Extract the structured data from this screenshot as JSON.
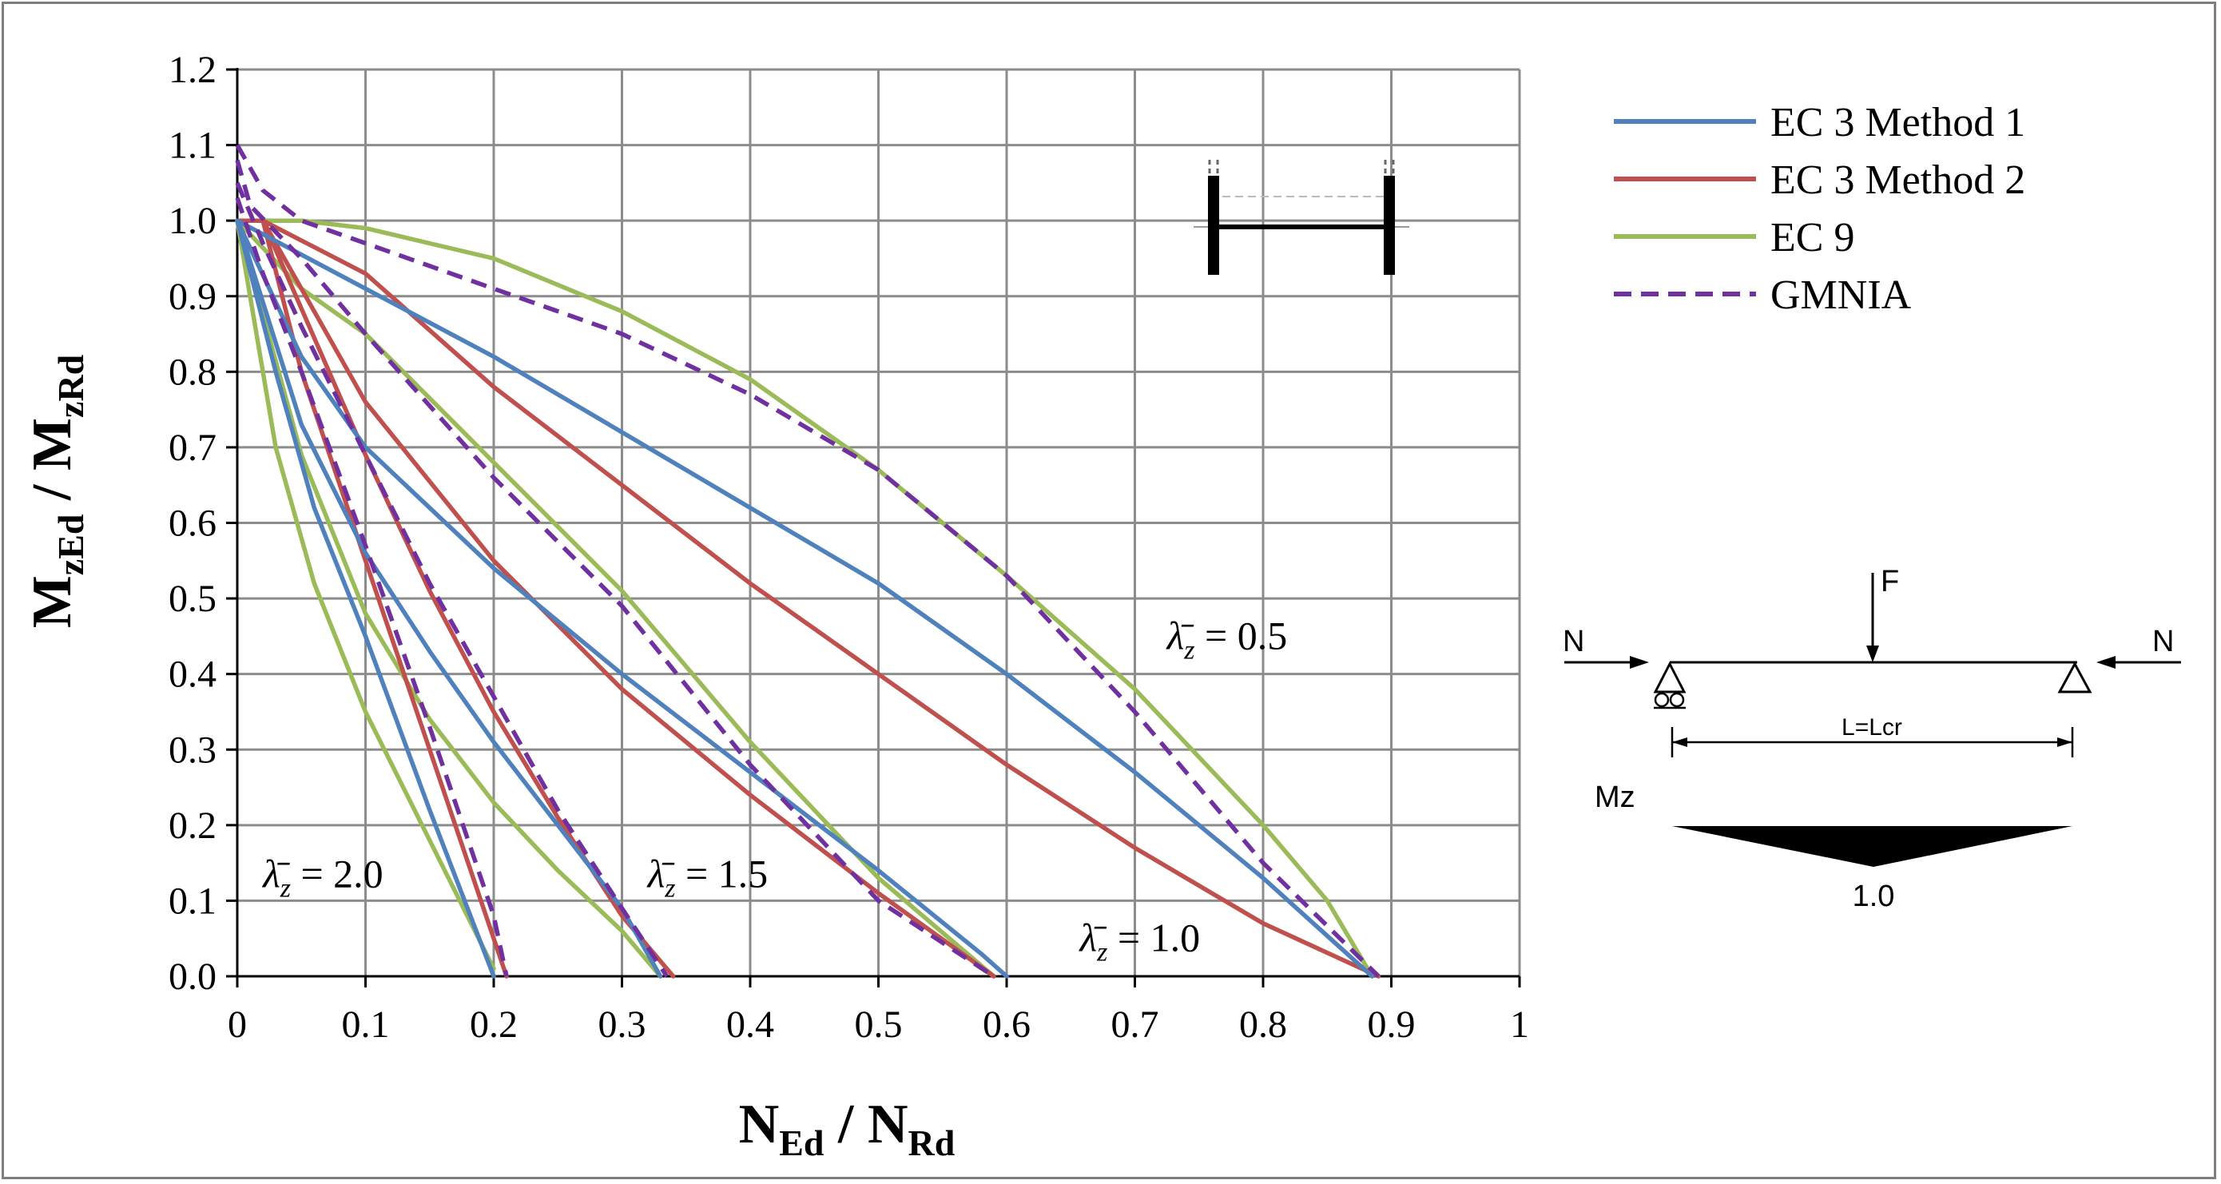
{
  "chart_data": {
    "type": "line",
    "xlabel": {
      "main": "N",
      "sub1": "Ed",
      "sep": " / ",
      "main2": "N",
      "sub2": "Rd"
    },
    "ylabel": {
      "main": "M",
      "sub1": "zEd",
      "sep": " / ",
      "main2": "M",
      "sub2": "zRd"
    },
    "xlim": [
      0,
      1
    ],
    "ylim": [
      0,
      1.2
    ],
    "x_ticks": [
      0,
      0.1,
      0.2,
      0.3,
      0.4,
      0.5,
      0.6,
      0.7,
      0.8,
      0.9,
      1
    ],
    "x_tick_labels": [
      "0",
      "0.1",
      "0.2",
      "0.3",
      "0.4",
      "0.5",
      "0.6",
      "0.7",
      "0.8",
      "0.9",
      "1"
    ],
    "y_ticks": [
      0,
      0.1,
      0.2,
      0.3,
      0.4,
      0.5,
      0.6,
      0.7,
      0.8,
      0.9,
      1.0,
      1.1,
      1.2
    ],
    "y_tick_labels": [
      "0.0",
      "0.1",
      "0.2",
      "0.3",
      "0.4",
      "0.5",
      "0.6",
      "0.7",
      "0.8",
      "0.9",
      "1.0",
      "1.1",
      "1.2"
    ],
    "grid": true,
    "legend_position": "right-top",
    "legend": [
      {
        "key": "ec3m1",
        "label": "EC 3 Method 1",
        "color": "#4f81bd",
        "dash": false
      },
      {
        "key": "ec3m2",
        "label": "EC 3 Method 2",
        "color": "#c0504d",
        "dash": false
      },
      {
        "key": "ec9",
        "label": "EC 9",
        "color": "#9bbb59",
        "dash": false
      },
      {
        "key": "gmnia",
        "label": "GMNIA",
        "color": "#7030a0",
        "dash": true
      }
    ],
    "annotations": [
      {
        "prefix": "λ̄",
        "sub": "z",
        "text": " = 0.5",
        "x": 0.725,
        "y": 0.45
      },
      {
        "prefix": "λ̄",
        "sub": "z",
        "text": " = 1.0",
        "x": 0.657,
        "y": 0.05
      },
      {
        "prefix": "λ̄",
        "sub": "z",
        "text": " = 1.5",
        "x": 0.32,
        "y": 0.135
      },
      {
        "prefix": "λ̄",
        "sub": "z",
        "text": " = 2.0",
        "x": 0.02,
        "y": 0.135
      }
    ],
    "series": [
      {
        "style": "ec3m1",
        "slenderness": "0.5",
        "x": [
          0,
          0.1,
          0.2,
          0.3,
          0.4,
          0.5,
          0.6,
          0.7,
          0.8,
          0.885
        ],
        "y": [
          1.0,
          0.91,
          0.82,
          0.72,
          0.62,
          0.52,
          0.4,
          0.27,
          0.13,
          0.0
        ]
      },
      {
        "style": "ec3m2",
        "slenderness": "0.5",
        "x": [
          0,
          0.02,
          0.1,
          0.2,
          0.3,
          0.4,
          0.5,
          0.6,
          0.7,
          0.8,
          0.89
        ],
        "y": [
          1.0,
          1.0,
          0.93,
          0.78,
          0.65,
          0.52,
          0.4,
          0.28,
          0.17,
          0.07,
          0.0
        ]
      },
      {
        "style": "ec9",
        "slenderness": "0.5",
        "x": [
          0,
          0.05,
          0.1,
          0.2,
          0.3,
          0.4,
          0.5,
          0.6,
          0.7,
          0.8,
          0.85,
          0.885
        ],
        "y": [
          1.0,
          1.0,
          0.99,
          0.95,
          0.88,
          0.79,
          0.67,
          0.53,
          0.38,
          0.2,
          0.1,
          0.0
        ]
      },
      {
        "style": "gmnia",
        "slenderness": "0.5",
        "x": [
          0,
          0.02,
          0.05,
          0.1,
          0.2,
          0.3,
          0.4,
          0.5,
          0.6,
          0.7,
          0.8,
          0.89
        ],
        "y": [
          1.1,
          1.04,
          1.0,
          0.97,
          0.91,
          0.85,
          0.77,
          0.67,
          0.53,
          0.35,
          0.15,
          0.0
        ]
      },
      {
        "style": "ec3m1",
        "slenderness": "1.0",
        "x": [
          0,
          0.05,
          0.1,
          0.2,
          0.3,
          0.4,
          0.5,
          0.58,
          0.6
        ],
        "y": [
          1.0,
          0.82,
          0.7,
          0.54,
          0.4,
          0.27,
          0.14,
          0.03,
          0.0
        ]
      },
      {
        "style": "ec3m2",
        "slenderness": "1.0",
        "x": [
          0,
          0.02,
          0.1,
          0.2,
          0.3,
          0.4,
          0.5,
          0.59
        ],
        "y": [
          1.0,
          1.0,
          0.76,
          0.55,
          0.38,
          0.24,
          0.11,
          0.0
        ]
      },
      {
        "style": "ec9",
        "slenderness": "1.0",
        "x": [
          0,
          0.05,
          0.1,
          0.2,
          0.3,
          0.4,
          0.5,
          0.59
        ],
        "y": [
          1.0,
          0.91,
          0.85,
          0.68,
          0.51,
          0.31,
          0.13,
          0.0
        ]
      },
      {
        "style": "gmnia",
        "slenderness": "1.0",
        "x": [
          0,
          0.01,
          0.05,
          0.1,
          0.2,
          0.3,
          0.4,
          0.5,
          0.59
        ],
        "y": [
          1.08,
          1.02,
          0.95,
          0.85,
          0.66,
          0.49,
          0.28,
          0.1,
          0.0
        ]
      },
      {
        "style": "ec3m1",
        "slenderness": "1.5",
        "x": [
          0,
          0.05,
          0.1,
          0.15,
          0.2,
          0.25,
          0.3,
          0.33
        ],
        "y": [
          1.0,
          0.73,
          0.56,
          0.43,
          0.31,
          0.2,
          0.09,
          0.0
        ]
      },
      {
        "style": "ec3m2",
        "slenderness": "1.5",
        "x": [
          0,
          0.02,
          0.1,
          0.15,
          0.2,
          0.25,
          0.3,
          0.34
        ],
        "y": [
          1.0,
          1.0,
          0.69,
          0.51,
          0.35,
          0.21,
          0.08,
          0.0
        ]
      },
      {
        "style": "ec9",
        "slenderness": "1.5",
        "x": [
          0,
          0.05,
          0.1,
          0.15,
          0.2,
          0.25,
          0.3,
          0.33
        ],
        "y": [
          1.0,
          0.69,
          0.48,
          0.34,
          0.23,
          0.14,
          0.06,
          0.0
        ]
      },
      {
        "style": "gmnia",
        "slenderness": "1.5",
        "x": [
          0,
          0.02,
          0.05,
          0.1,
          0.15,
          0.2,
          0.25,
          0.3,
          0.335
        ],
        "y": [
          1.05,
          0.97,
          0.86,
          0.69,
          0.52,
          0.37,
          0.22,
          0.09,
          0.0
        ]
      },
      {
        "style": "ec3m1",
        "slenderness": "2.0",
        "x": [
          0,
          0.03,
          0.06,
          0.1,
          0.15,
          0.2
        ],
        "y": [
          1.0,
          0.8,
          0.62,
          0.45,
          0.22,
          0.0
        ]
      },
      {
        "style": "ec3m2",
        "slenderness": "2.0",
        "x": [
          0,
          0.02,
          0.05,
          0.1,
          0.15,
          0.2,
          0.21
        ],
        "y": [
          1.0,
          1.0,
          0.8,
          0.55,
          0.3,
          0.05,
          0.0
        ]
      },
      {
        "style": "ec9",
        "slenderness": "2.0",
        "x": [
          0,
          0.03,
          0.06,
          0.1,
          0.15,
          0.2
        ],
        "y": [
          1.0,
          0.7,
          0.52,
          0.35,
          0.18,
          0.01
        ]
      },
      {
        "style": "gmnia",
        "slenderness": "2.0",
        "x": [
          0,
          0.02,
          0.05,
          0.1,
          0.15,
          0.2,
          0.21
        ],
        "y": [
          1.03,
          0.93,
          0.8,
          0.57,
          0.33,
          0.08,
          0.0
        ]
      }
    ]
  },
  "diagram": {
    "force_label": "F",
    "axial_left": "N",
    "axial_right": "N",
    "length_label": "L=Lcr",
    "moment_label": "Mz",
    "moment_value": "1.0"
  }
}
